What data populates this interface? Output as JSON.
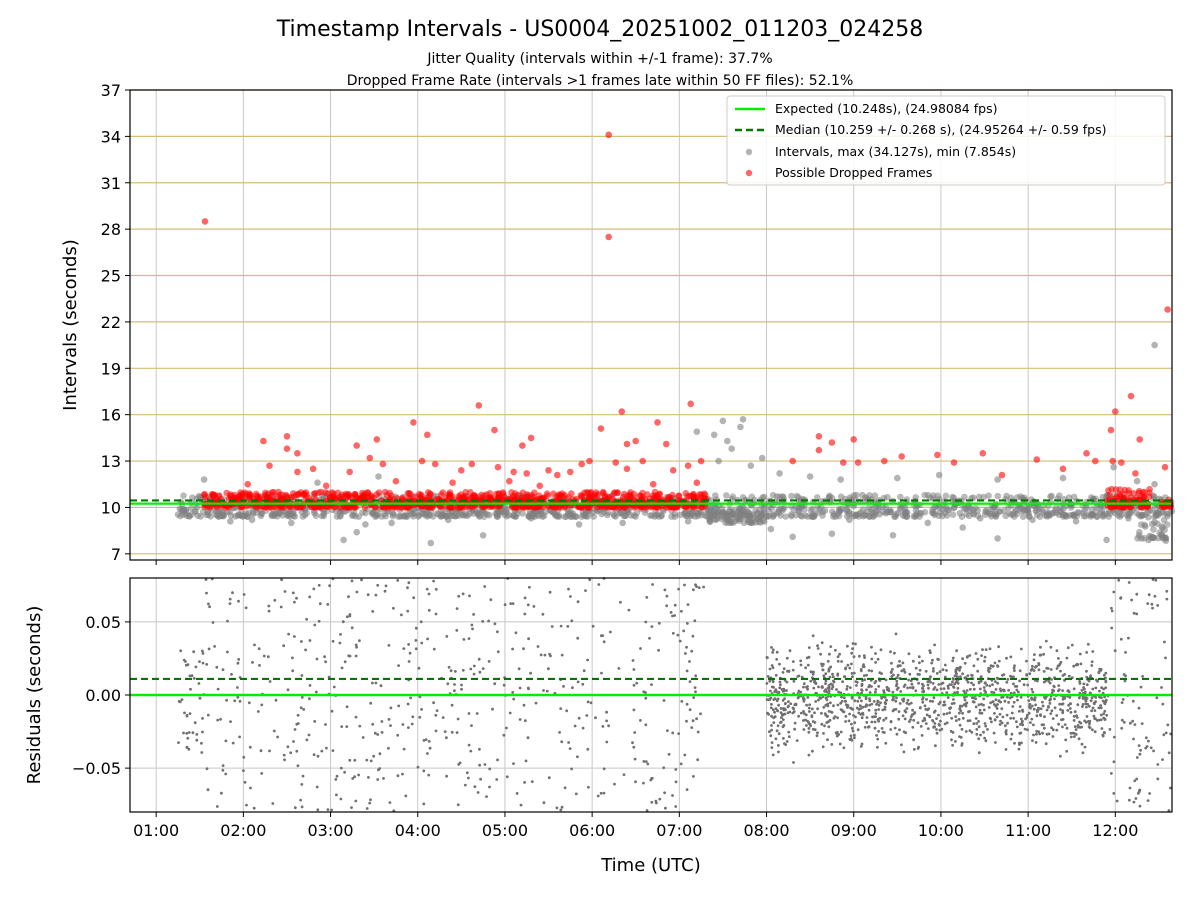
{
  "chart_data": {
    "type": "scatter",
    "title": "Timestamp Intervals - US0004_20251002_011203_024258",
    "subtitle_1": "Jitter Quality (intervals within +/-1 frame): 37.7%",
    "subtitle_2": "Dropped Frame Rate (intervals >1 frames late within 50 FF files): 52.1%",
    "xlabel": "Time (UTC)",
    "x_ticks": [
      "01:00",
      "02:00",
      "03:00",
      "04:00",
      "05:00",
      "06:00",
      "07:00",
      "08:00",
      "09:00",
      "10:00",
      "11:00",
      "12:00"
    ],
    "xlim_hours": [
      0.7,
      12.65
    ],
    "top_panel": {
      "ylabel": "Intervals (seconds)",
      "ylim": [
        6.6,
        37
      ],
      "y_ticks": [
        7,
        10,
        13,
        16,
        19,
        22,
        25,
        28,
        31,
        34,
        37
      ],
      "expected_value": 10.248,
      "median_value": 10.259,
      "legend": {
        "placement": "top-right",
        "expected": "Expected (10.248s), (24.98084 fps)",
        "median": "Median (10.259 +/- 0.268 s), (24.95264 +/- 0.59 fps)",
        "intervals": "Intervals, max (34.127s), min (7.854s)",
        "dropped": "Possible Dropped Frames"
      },
      "series": [
        {
          "name": "Possible Dropped Frames",
          "color": "#ff0000",
          "points": [
            [
              1.56,
              28.5
            ],
            [
              6.19,
              34.1
            ],
            [
              6.19,
              27.5
            ],
            [
              12.6,
              22.8
            ],
            [
              2.23,
              14.3
            ],
            [
              2.5,
              14.6
            ],
            [
              2.5,
              13.8
            ],
            [
              2.62,
              13.5
            ],
            [
              3.3,
              14.0
            ],
            [
              3.53,
              14.4
            ],
            [
              3.95,
              15.5
            ],
            [
              4.11,
              14.7
            ],
            [
              4.7,
              16.6
            ],
            [
              4.88,
              15.0
            ],
            [
              5.2,
              14.0
            ],
            [
              5.3,
              14.5
            ],
            [
              6.1,
              15.1
            ],
            [
              6.34,
              16.2
            ],
            [
              6.4,
              14.1
            ],
            [
              6.5,
              14.3
            ],
            [
              6.75,
              15.5
            ],
            [
              7.13,
              16.7
            ],
            [
              6.85,
              14.1
            ],
            [
              8.6,
              14.6
            ],
            [
              8.75,
              14.2
            ],
            [
              9.0,
              14.4
            ],
            [
              12.0,
              16.2
            ],
            [
              12.18,
              17.2
            ],
            [
              12.28,
              14.4
            ],
            [
              11.95,
              15.0
            ],
            [
              8.3,
              13.0
            ],
            [
              8.6,
              13.7
            ],
            [
              8.88,
              12.9
            ],
            [
              9.05,
              12.9
            ],
            [
              9.35,
              13.0
            ],
            [
              9.55,
              13.3
            ],
            [
              9.96,
              13.4
            ],
            [
              10.15,
              12.9
            ],
            [
              10.48,
              13.5
            ],
            [
              10.7,
              12.1
            ],
            [
              11.1,
              13.1
            ],
            [
              11.4,
              12.5
            ],
            [
              11.67,
              13.5
            ],
            [
              11.77,
              13.0
            ],
            [
              11.97,
              13.0
            ],
            [
              12.07,
              12.9
            ],
            [
              12.23,
              12.2
            ],
            [
              12.57,
              12.6
            ],
            [
              2.3,
              12.7
            ],
            [
              2.62,
              12.3
            ],
            [
              2.8,
              12.5
            ],
            [
              3.22,
              12.3
            ],
            [
              3.45,
              13.2
            ],
            [
              3.6,
              12.8
            ],
            [
              4.05,
              13.0
            ],
            [
              4.2,
              12.8
            ],
            [
              4.5,
              12.4
            ],
            [
              4.62,
              12.8
            ],
            [
              4.92,
              12.6
            ],
            [
              5.1,
              12.3
            ],
            [
              5.25,
              12.2
            ],
            [
              5.5,
              12.4
            ],
            [
              5.6,
              12.1
            ],
            [
              5.75,
              12.3
            ],
            [
              5.88,
              12.8
            ],
            [
              5.97,
              13.0
            ],
            [
              6.27,
              12.9
            ],
            [
              6.4,
              12.5
            ],
            [
              6.58,
              13.0
            ],
            [
              6.93,
              12.4
            ],
            [
              7.1,
              12.7
            ],
            [
              7.25,
              13.0
            ],
            [
              2.05,
              11.5
            ],
            [
              2.95,
              11.4
            ],
            [
              3.75,
              11.7
            ],
            [
              4.4,
              11.6
            ],
            [
              5.05,
              11.7
            ],
            [
              5.4,
              11.4
            ],
            [
              6.7,
              11.5
            ],
            [
              7.2,
              11.6
            ]
          ],
          "dense_bands": [
            {
              "x": [
                1.55,
                7.3
              ],
              "y": [
                10.0,
                11.0
              ]
            },
            {
              "x": [
                11.9,
                12.4
              ],
              "y": [
                10.0,
                11.2
              ]
            },
            {
              "x": [
                12.52,
                12.65
              ],
              "y": [
                10.0,
                10.5
              ]
            }
          ]
        },
        {
          "name": "Intervals",
          "color": "#808080",
          "points": [
            [
              12.45,
              20.5
            ],
            [
              7.5,
              15.6
            ],
            [
              7.73,
              15.7
            ],
            [
              7.7,
              15.2
            ],
            [
              7.2,
              14.9
            ],
            [
              7.4,
              14.7
            ],
            [
              7.55,
              14.3
            ],
            [
              7.6,
              13.8
            ],
            [
              7.95,
              13.2
            ],
            [
              7.45,
              13.0
            ],
            [
              7.82,
              12.7
            ],
            [
              8.15,
              12.2
            ],
            [
              8.5,
              12.0
            ],
            [
              8.85,
              11.8
            ],
            [
              9.5,
              11.9
            ],
            [
              9.98,
              12.1
            ],
            [
              10.65,
              11.8
            ],
            [
              11.4,
              11.9
            ],
            [
              11.98,
              12.6
            ],
            [
              12.25,
              11.7
            ],
            [
              12.45,
              11.5
            ],
            [
              1.55,
              11.8
            ],
            [
              2.85,
              11.6
            ],
            [
              3.55,
              12.0
            ],
            [
              3.15,
              7.9
            ],
            [
              3.3,
              8.4
            ],
            [
              4.15,
              7.7
            ],
            [
              4.75,
              8.2
            ],
            [
              5.85,
              8.9
            ],
            [
              7.1,
              9.1
            ],
            [
              8.05,
              8.6
            ],
            [
              8.3,
              8.1
            ],
            [
              8.75,
              8.3
            ],
            [
              9.45,
              8.2
            ],
            [
              10.25,
              8.7
            ],
            [
              10.65,
              8.0
            ],
            [
              11.9,
              7.9
            ],
            [
              12.3,
              8.0
            ],
            [
              12.38,
              7.9
            ],
            [
              12.58,
              7.85
            ],
            [
              1.85,
              9.1
            ],
            [
              2.1,
              9.2
            ],
            [
              2.55,
              9.0
            ],
            [
              3.4,
              8.9
            ],
            [
              3.7,
              9.0
            ],
            [
              4.35,
              9.2
            ],
            [
              5.3,
              9.3
            ],
            [
              6.35,
              9.0
            ],
            [
              8.95,
              9.2
            ],
            [
              9.85,
              9.0
            ],
            [
              10.45,
              9.3
            ],
            [
              11.05,
              9.2
            ],
            [
              11.55,
              9.1
            ],
            [
              12.15,
              9.3
            ]
          ],
          "dense_bands": [
            {
              "x": [
                1.25,
                12.65
              ],
              "y": [
                9.4,
                10.8
              ]
            },
            {
              "x": [
                7.3,
                8.0
              ],
              "y": [
                9.0,
                10.0
              ]
            },
            {
              "x": [
                12.25,
                12.6
              ],
              "y": [
                8.0,
                9.8
              ]
            }
          ]
        }
      ]
    },
    "bottom_panel": {
      "ylabel": "Residuals (seconds)",
      "ylim": [
        -0.08,
        0.08
      ],
      "y_ticks": [
        -0.05,
        0.0,
        0.05
      ],
      "y_tick_labels": [
        "−0.05",
        "0.00",
        "0.05"
      ],
      "expected_residual": 0.0,
      "median_residual": 0.011,
      "series": [
        {
          "name": "Residuals",
          "color": "#707070",
          "regions": [
            {
              "x": [
                1.25,
                1.55
              ],
              "y": [
                -0.04,
                0.035
              ]
            },
            {
              "x": [
                1.55,
                7.3
              ],
              "y": [
                -0.08,
                0.08
              ]
            },
            {
              "x": [
                8.0,
                11.9
              ],
              "y": [
                -0.05,
                0.045
              ]
            },
            {
              "x": [
                11.9,
                12.65
              ],
              "y": [
                -0.08,
                0.08
              ]
            }
          ]
        }
      ]
    },
    "colors": {
      "expected": "#00ee00",
      "median": "#007700",
      "grid": "#c8c8c8",
      "hline": "#d4bc7a"
    },
    "grid": true
  }
}
